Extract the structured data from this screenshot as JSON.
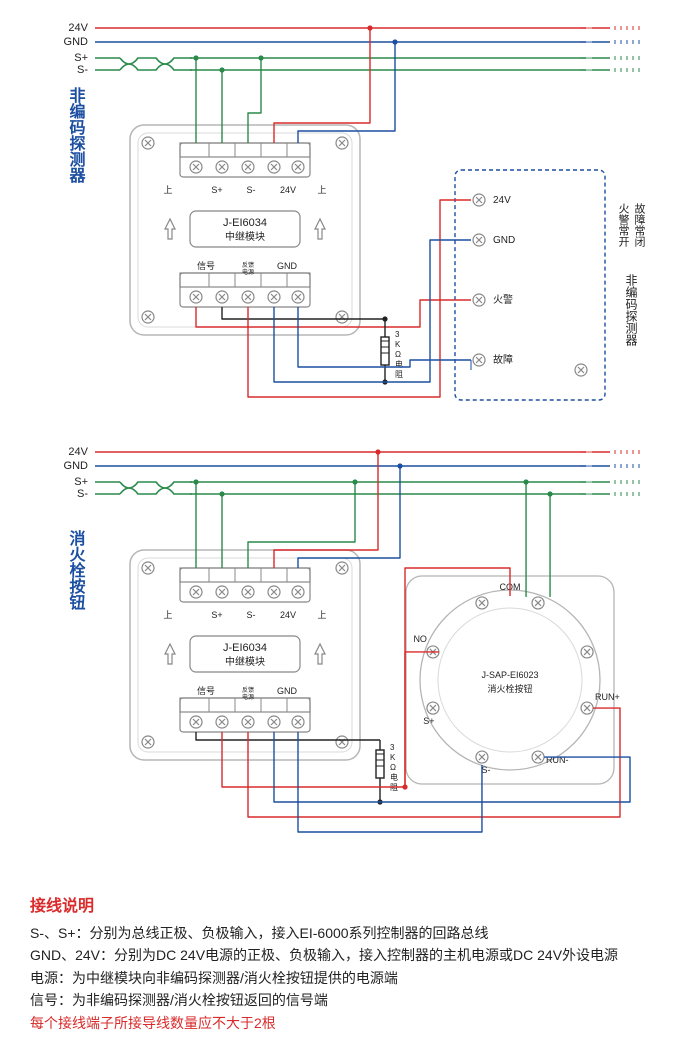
{
  "colors": {
    "red": "#d92b2b",
    "blue": "#1c4fa1",
    "green": "#2a8a4a",
    "grey": "#888888",
    "midgrey": "#b5b5b5",
    "lightgrey": "#d9d9d9",
    "black": "#222222",
    "labelBlue": "#1c4fa1",
    "dashBlue": "#1c4fa1"
  },
  "busLabels": {
    "v24": "24V",
    "gnd": "GND",
    "sp": "S+",
    "sm": "S-"
  },
  "diagram1": {
    "sideLabel": "非编码探测器",
    "module": {
      "model": "J-EI6034",
      "sub": "中继模块"
    },
    "topTerm": {
      "up1": "上",
      "sp": "S+",
      "sm": "S-",
      "v24": "24V",
      "up2": "上"
    },
    "botTerm": {
      "sig": "信号",
      "pwr": "反馈\n电源",
      "gnd": "GND"
    },
    "resistor": "3\nK\nΩ\n电\n阻",
    "detector": {
      "title": "非编码探测器",
      "subtitle1": "火警常开",
      "subtitle2": "故障常闭",
      "t24": "24V",
      "tgnd": "GND",
      "tfire": "火警",
      "tfault": "故障"
    }
  },
  "diagram2": {
    "sideLabel": "消火栓按钮",
    "module": {
      "model": "J-EI6034",
      "sub": "中继模块"
    },
    "topTerm": {
      "up1": "上",
      "sp": "S+",
      "sm": "S-",
      "v24": "24V",
      "up2": "上"
    },
    "botTerm": {
      "sig": "信号",
      "pwr": "反馈\n电源",
      "gnd": "GND"
    },
    "resistor": "3\nK\nΩ\n电\n阻",
    "button": {
      "model": "J-SAP-EI6023",
      "sub": "消火栓按钮",
      "no": "NO",
      "com": "COM",
      "runp": "RUN+",
      "runm": "RUN-",
      "sp": "S+",
      "sm": "S-"
    }
  },
  "notes": {
    "title": "接线说明",
    "lines": [
      "S-、S+：分别为总线正极、负极输入，接入EI-6000系列控制器的回路总线",
      "GND、24V：分别为DC 24V电源的正极、负极输入，接入控制器的主机电源或DC 24V外设电源",
      "电源：为中继模块向非编码探测器/消火栓按钮提供的电源端",
      "信号：为非编码探测器/消火栓按钮返回的信号端"
    ],
    "warn": "每个接线端子所接导线数量应不大于2根"
  },
  "style": {
    "busStroke": 1.6,
    "wireStroke": 1.4,
    "moduleStroke": 1.2,
    "nodeR": 2.6,
    "fontTiny": 8,
    "fontSmall": 10,
    "fontMed": 12,
    "fontSide": 16
  }
}
